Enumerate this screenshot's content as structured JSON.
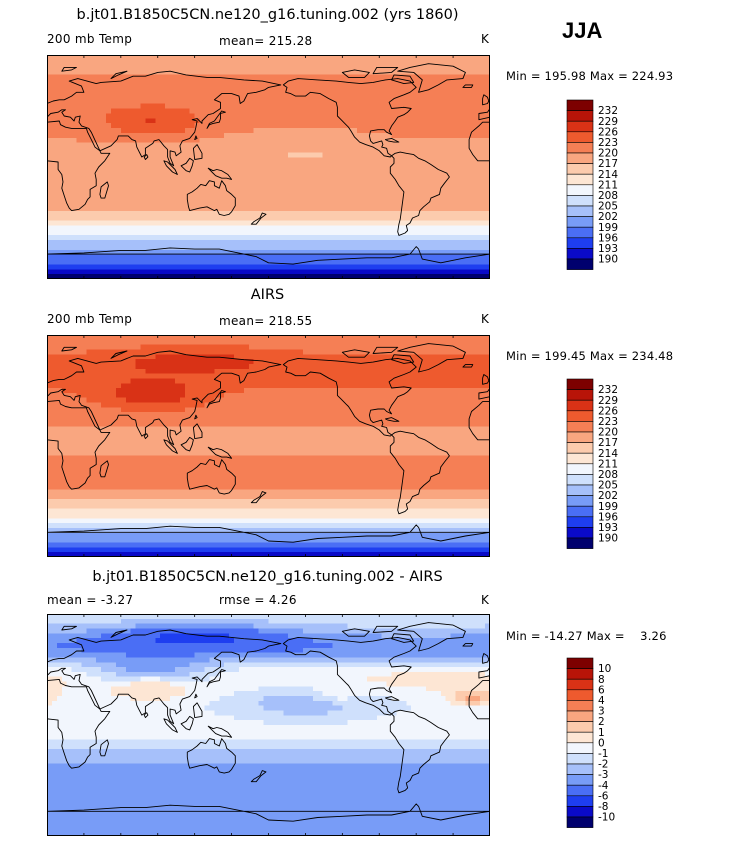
{
  "season_label": "JJA",
  "colors": {
    "temp": [
      "#00006e",
      "#0a0ac8",
      "#1e3ef0",
      "#4a6ef5",
      "#789cf7",
      "#a6c0fa",
      "#cfe0fc",
      "#f2f6fd",
      "#fde6d4",
      "#fccbad",
      "#f9a680",
      "#f57f55",
      "#ee5a2e",
      "#d93216",
      "#b81408",
      "#7d0000"
    ],
    "diff": [
      "#00006e",
      "#0a0ac8",
      "#1e3ef0",
      "#4a6ef5",
      "#789cf7",
      "#a6c0fa",
      "#cfe0fc",
      "#f2f6fd",
      "#fde6d4",
      "#fccbad",
      "#f9a680",
      "#f57f55",
      "#ee5a2e",
      "#d93216",
      "#b81408",
      "#7d0000"
    ]
  },
  "panels": [
    {
      "id": "model",
      "title": "b.jt01.B1850C5CN.ne120_g16.tuning.002 (yrs 1860)",
      "left_label": "200 mb Temp",
      "center_label": "mean= 215.28",
      "right_label": "K",
      "min_text": "Min = 195.98",
      "max_text": "Max = 224.93",
      "colorbar_labels": [
        "232",
        "229",
        "226",
        "223",
        "220",
        "217",
        "214",
        "211",
        "208",
        "205",
        "202",
        "199",
        "196",
        "193",
        "190"
      ],
      "field": "temp_model",
      "field_data": {
        "variable": "200 mb Temp",
        "units": "K",
        "mean": 215.28,
        "min": 195.98,
        "max": 224.93
      }
    },
    {
      "id": "obs",
      "title": "AIRS",
      "left_label": "200 mb Temp",
      "center_label": "mean= 218.55",
      "right_label": "K",
      "min_text": "Min = 199.45",
      "max_text": "Max = 234.48",
      "colorbar_labels": [
        "232",
        "229",
        "226",
        "223",
        "220",
        "217",
        "214",
        "211",
        "208",
        "205",
        "202",
        "199",
        "196",
        "193",
        "190"
      ],
      "field": "temp_obs",
      "field_data": {
        "variable": "200 mb Temp",
        "units": "K",
        "mean": 218.55,
        "min": 199.45,
        "max": 234.48
      }
    },
    {
      "id": "diff",
      "title": "b.jt01.B1850C5CN.ne120_g16.tuning.002 - AIRS",
      "left_label": "mean =   -3.27",
      "center_label": "rmse =    4.26",
      "right_label": "K",
      "min_text": "Min = -14.27",
      "max_text": "Max =    3.26",
      "colorbar_labels": [
        "10",
        "8",
        "6",
        "4",
        "3",
        "2",
        "1",
        "0",
        "-1",
        "-2",
        "-3",
        "-4",
        "-6",
        "-8",
        "-10"
      ],
      "field": "diff",
      "field_data": {
        "units": "K",
        "mean": -3.27,
        "rmse": 4.26,
        "min": -14.27,
        "max": 3.26
      }
    }
  ]
}
